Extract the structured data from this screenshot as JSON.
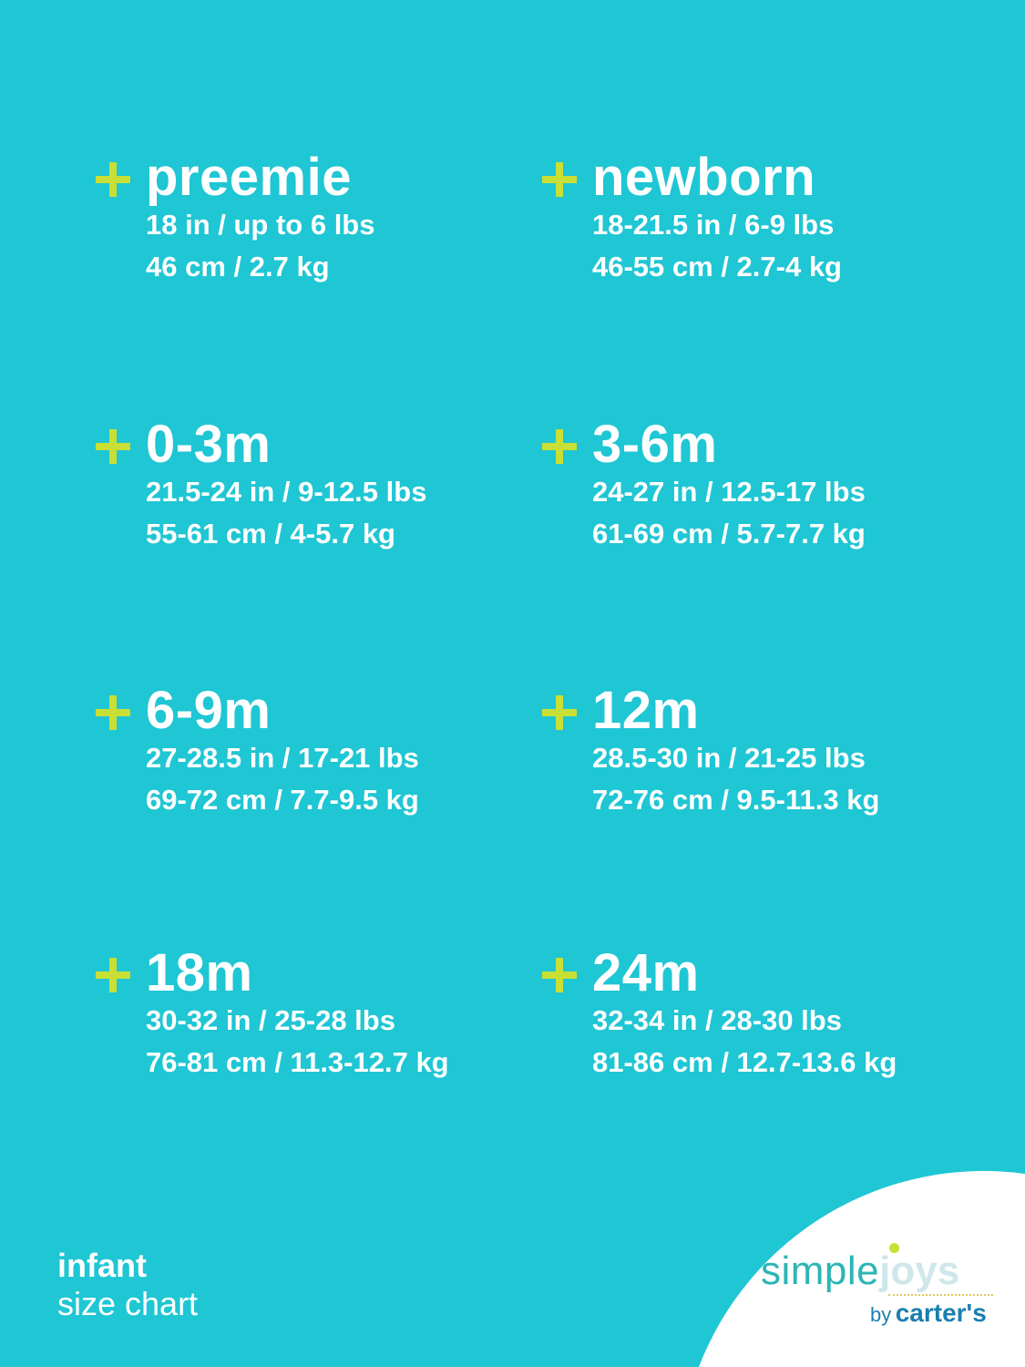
{
  "sizes": [
    {
      "title": "preemie",
      "imperial": "18 in / up to 6 lbs",
      "metric": "46 cm / 2.7 kg"
    },
    {
      "title": "newborn",
      "imperial": "18-21.5 in / 6-9 lbs",
      "metric": "46-55 cm / 2.7-4 kg"
    },
    {
      "title": "0-3m",
      "imperial": "21.5-24 in / 9-12.5 lbs",
      "metric": "55-61 cm / 4-5.7 kg"
    },
    {
      "title": "3-6m",
      "imperial": "24-27 in / 12.5-17 lbs",
      "metric": "61-69 cm / 5.7-7.7 kg"
    },
    {
      "title": "6-9m",
      "imperial": "27-28.5 in / 17-21 lbs",
      "metric": "69-72 cm / 7.7-9.5 kg"
    },
    {
      "title": "12m",
      "imperial": "28.5-30 in / 21-25 lbs",
      "metric": "72-76 cm / 9.5-11.3 kg"
    },
    {
      "title": "18m",
      "imperial": "30-32 in / 25-28 lbs",
      "metric": "76-81 cm / 11.3-12.7 kg"
    },
    {
      "title": "24m",
      "imperial": "32-34 in / 28-30 lbs",
      "metric": "81-86 cm / 12.7-13.6 kg"
    }
  ],
  "footer": {
    "line1": "infant",
    "line2": "size chart"
  },
  "logo": {
    "simple": "simple",
    "joys": "joys",
    "by": "by",
    "brand": "carter's"
  },
  "colors": {
    "background": "#1fc6d4",
    "plus": "#c8df35",
    "text": "#ffffff",
    "logo_blue": "#1a7fb0"
  },
  "icons": {
    "bullet": "plus-icon"
  }
}
